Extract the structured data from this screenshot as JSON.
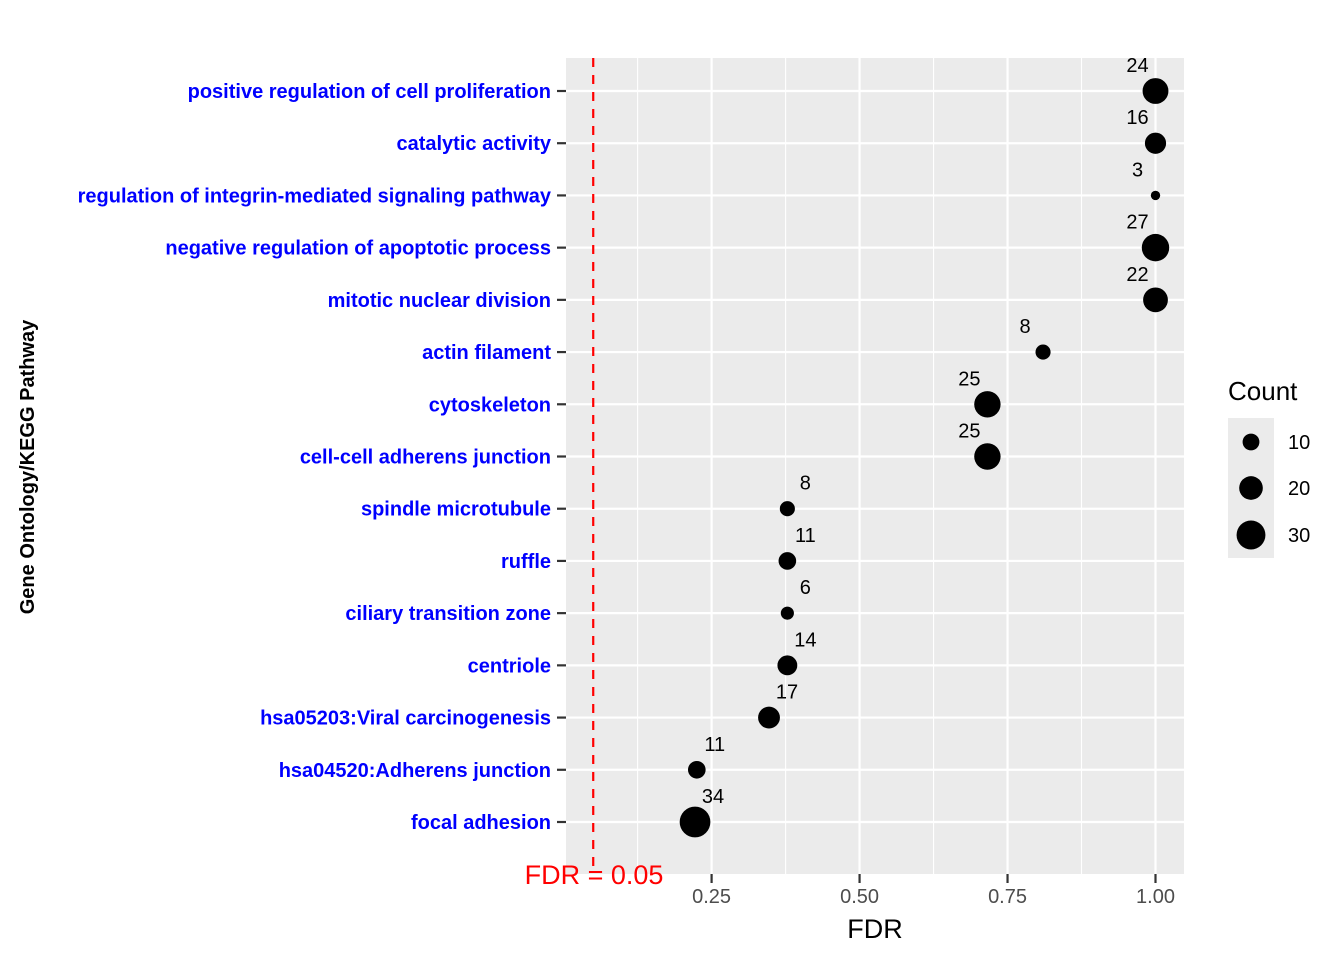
{
  "chart_data": {
    "type": "scatter",
    "xlabel": "FDR",
    "ylabel": "Gene Ontology/KEGG Pathway",
    "xlim": [
      0.0,
      1.045
    ],
    "x_ticks": [
      0.25,
      0.5,
      0.75,
      1.0
    ],
    "x_tick_labels": [
      "0.25",
      "0.50",
      "0.75",
      "1.00"
    ],
    "grid": true,
    "legend": {
      "title": "Count",
      "position": "right",
      "sizes": [
        10,
        20,
        30
      ],
      "labels": [
        "10",
        "20",
        "30"
      ]
    },
    "reference_line": {
      "x": 0.05,
      "color": "#ff0000",
      "style": "dashed",
      "label": "FDR = 0.05"
    },
    "category_color": "#0000ff",
    "point_color": "#000000",
    "points": [
      {
        "term": "positive regulation of cell proliferation",
        "fdr": 1.0,
        "count": 24
      },
      {
        "term": "catalytic activity",
        "fdr": 1.0,
        "count": 16
      },
      {
        "term": "regulation of integrin-mediated signaling pathway",
        "fdr": 1.0,
        "count": 3
      },
      {
        "term": "negative regulation of apoptotic process",
        "fdr": 1.0,
        "count": 27
      },
      {
        "term": "mitotic nuclear division",
        "fdr": 1.0,
        "count": 22
      },
      {
        "term": "actin filament",
        "fdr": 0.81,
        "count": 8
      },
      {
        "term": "cytoskeleton",
        "fdr": 0.716,
        "count": 25
      },
      {
        "term": "cell-cell adherens junction",
        "fdr": 0.716,
        "count": 25
      },
      {
        "term": "spindle microtubule",
        "fdr": 0.378,
        "count": 8
      },
      {
        "term": "ruffle",
        "fdr": 0.378,
        "count": 11
      },
      {
        "term": "ciliary transition zone",
        "fdr": 0.378,
        "count": 6
      },
      {
        "term": "centriole",
        "fdr": 0.378,
        "count": 14
      },
      {
        "term": "hsa05203:Viral carcinogenesis",
        "fdr": 0.347,
        "count": 17
      },
      {
        "term": "hsa04520:Adherens junction",
        "fdr": 0.225,
        "count": 11
      },
      {
        "term": "focal adhesion",
        "fdr": 0.222,
        "count": 34
      }
    ]
  }
}
